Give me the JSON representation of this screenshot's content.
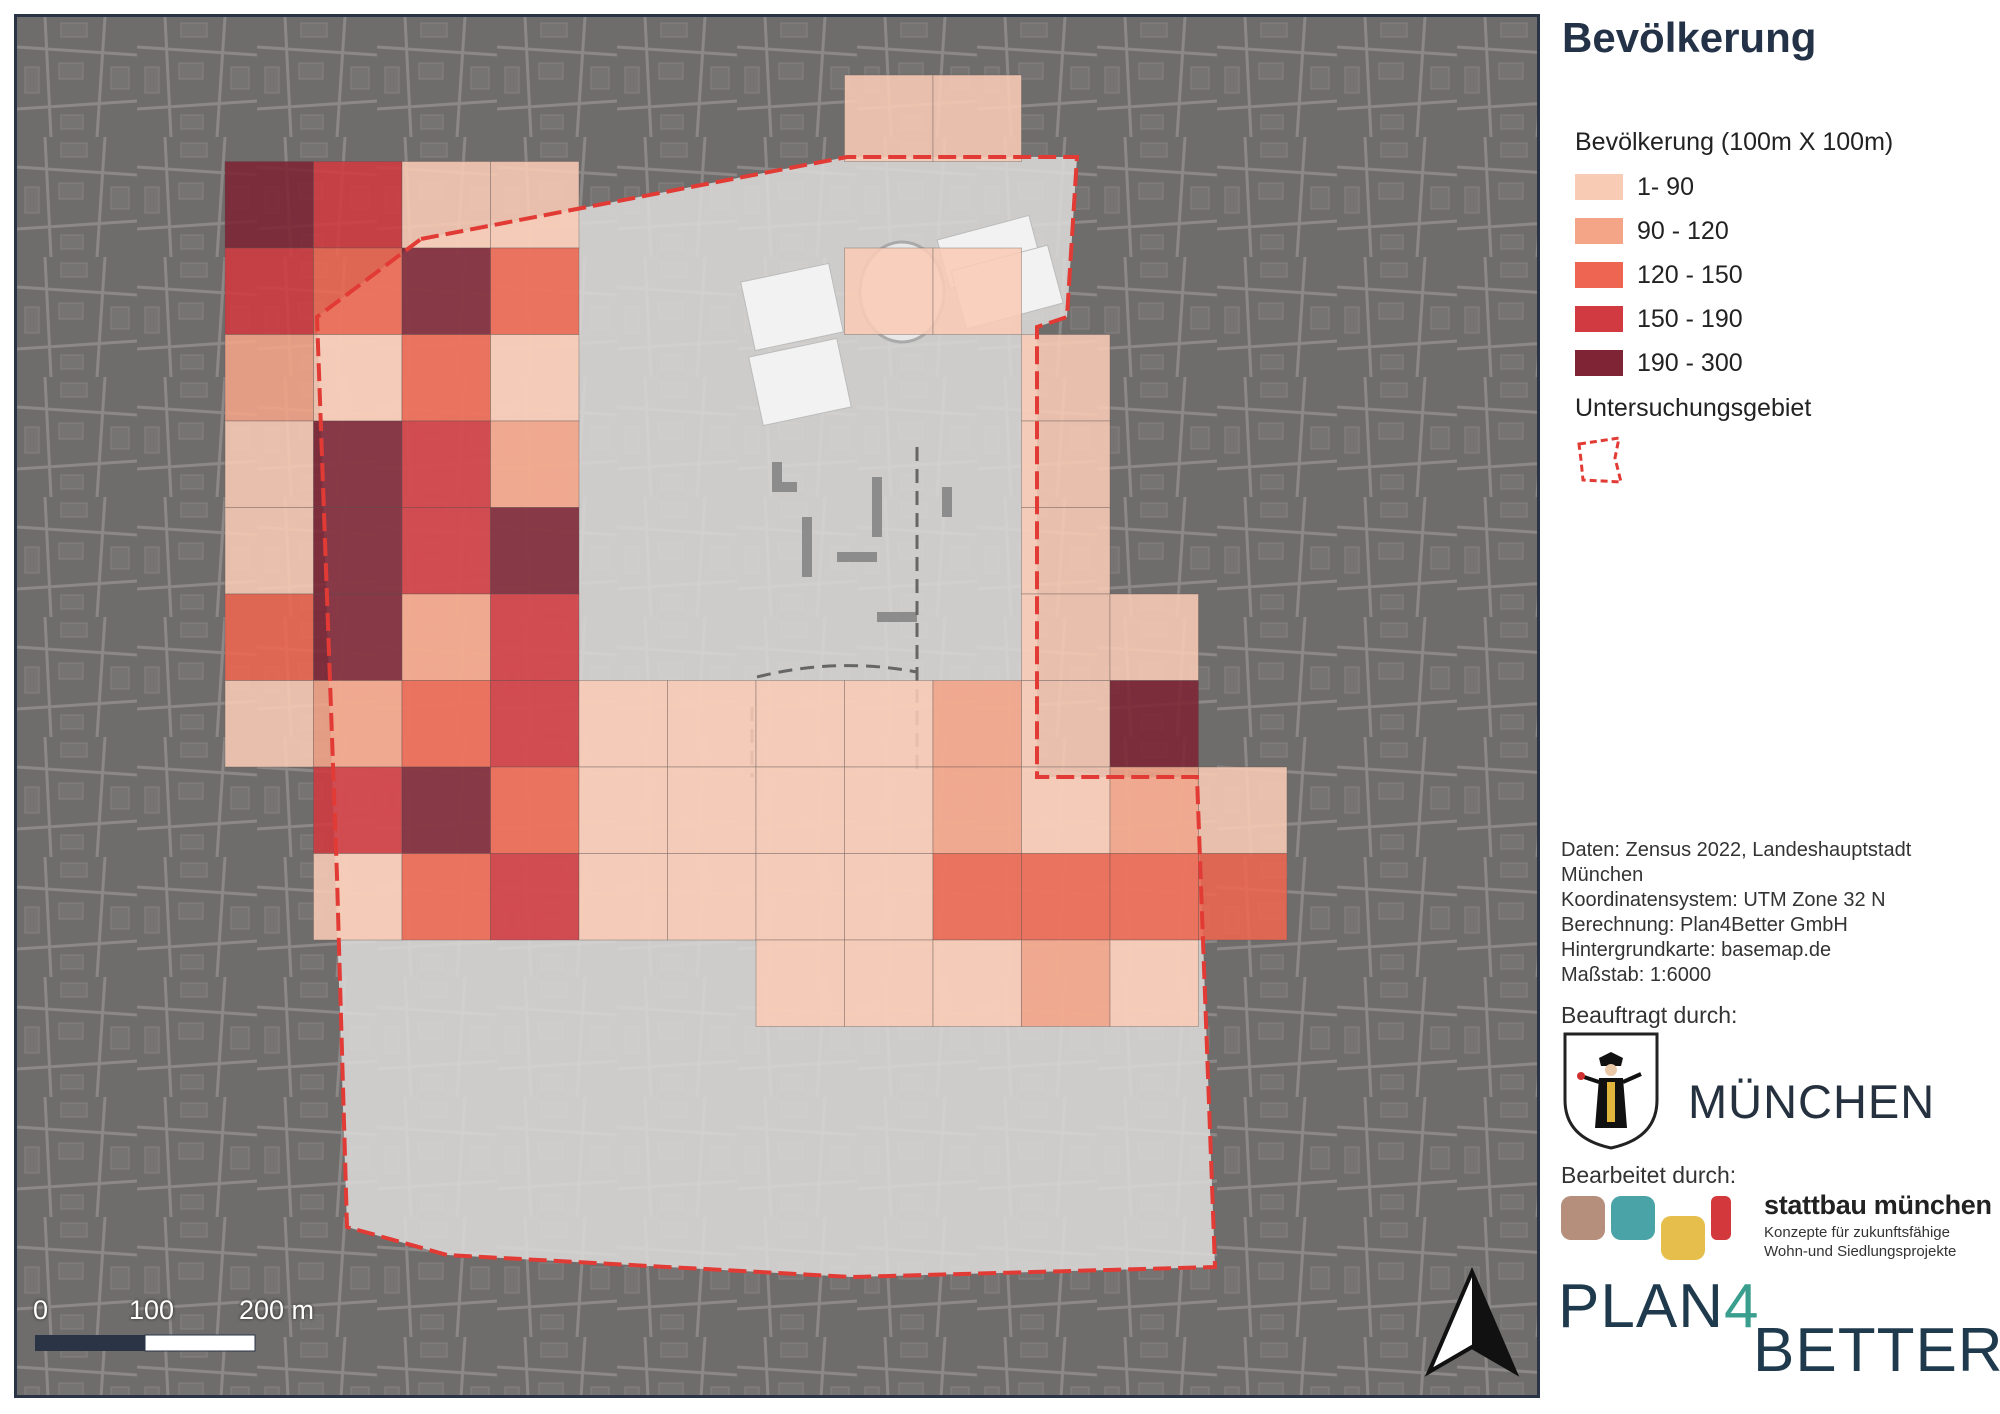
{
  "legend": {
    "title": "Bevölkerung",
    "subtitle": "Bevölkerung (100m X 100m)",
    "classes": [
      {
        "label": "1- 90",
        "color": "#f8cbb5"
      },
      {
        "label": "90 - 120",
        "color": "#f4a487"
      },
      {
        "label": "120 - 150",
        "color": "#ee6651"
      },
      {
        "label": "150 - 190",
        "color": "#d13a40"
      },
      {
        "label": "190 - 300",
        "color": "#7e2434"
      }
    ],
    "study_area_label": "Untersuchungsgebiet",
    "study_area_color": "#e23b35"
  },
  "scale_bar": {
    "labels": [
      "0",
      "100",
      "200 m"
    ]
  },
  "north_arrow": {
    "icon": "north-arrow-icon"
  },
  "sources": [
    "Daten: Zensus 2022, Landeshauptstadt",
    "München",
    "Koordinatensystem: UTM Zone 32 N",
    "Berechnung: Plan4Better GmbH",
    "Hintergrundkarte: basemap.de",
    "Maßstab: 1:6000"
  ],
  "commissioned_by": {
    "label": "Beauftragt durch:",
    "name": "MÜNCHEN",
    "icon": "munich-crest-icon"
  },
  "processed_by": {
    "label": "Bearbeitet durch:",
    "name": "stattbau münchen",
    "tagline_1": "Konzepte für zukunftsfähige",
    "tagline_2": "Wohn-und Siedlungsprojekte",
    "logo_colors": [
      "#b58e7c",
      "#4aa3a7",
      "#e6be4c",
      "#d2383c"
    ]
  },
  "plan4better": {
    "part1": "PLAN",
    "four": "4",
    "part2": "BETTER"
  },
  "grid_classes": [
    [
      null,
      null,
      null,
      null,
      null,
      null,
      null,
      0,
      0,
      null,
      null,
      null,
      null
    ],
    [
      4,
      3,
      0,
      0,
      null,
      null,
      null,
      null,
      null,
      null,
      null,
      null,
      null
    ],
    [
      3,
      2,
      4,
      2,
      null,
      null,
      null,
      0,
      0,
      null,
      null,
      null,
      null
    ],
    [
      1,
      0,
      2,
      0,
      null,
      null,
      null,
      null,
      null,
      0,
      null,
      null,
      null
    ],
    [
      0,
      4,
      3,
      1,
      null,
      null,
      null,
      null,
      null,
      0,
      null,
      null,
      null
    ],
    [
      0,
      4,
      3,
      4,
      null,
      null,
      null,
      null,
      null,
      0,
      null,
      null,
      null
    ],
    [
      2,
      4,
      1,
      3,
      null,
      null,
      null,
      null,
      null,
      0,
      0,
      null,
      null
    ],
    [
      0,
      1,
      2,
      3,
      0,
      0,
      0,
      0,
      1,
      0,
      4,
      null,
      null
    ],
    [
      null,
      3,
      4,
      2,
      0,
      0,
      0,
      0,
      1,
      0,
      1,
      0,
      null
    ],
    [
      null,
      0,
      2,
      3,
      0,
      0,
      0,
      0,
      2,
      2,
      2,
      2,
      null
    ],
    [
      null,
      null,
      null,
      null,
      null,
      null,
      0,
      0,
      0,
      1,
      0,
      null,
      null
    ]
  ]
}
